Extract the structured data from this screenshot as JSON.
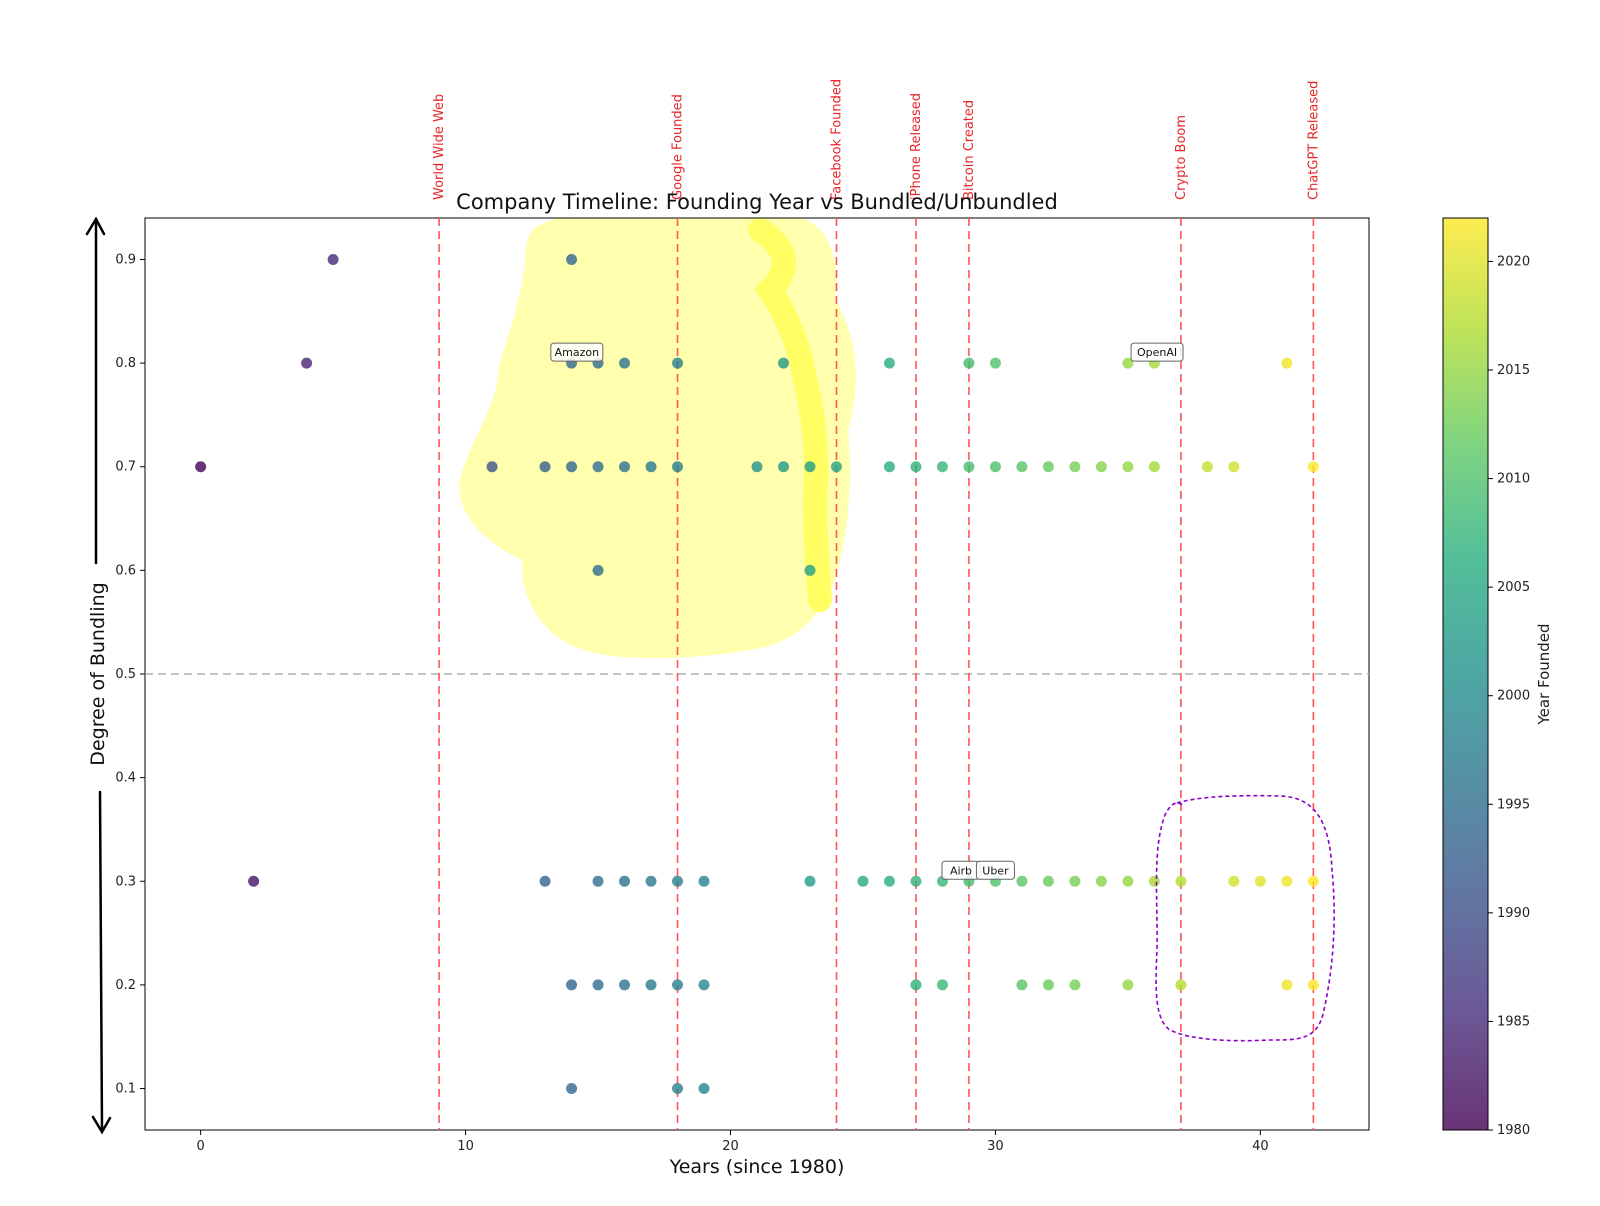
{
  "chart_data": {
    "type": "scatter",
    "title": "Company Timeline: Founding Year vs Bundled/Unbundled",
    "xlabel": "Years (since 1980)",
    "ylabel": "Degree of Bundling",
    "xlim": [
      -2.1,
      44.1
    ],
    "ylim": [
      0.06,
      0.94
    ],
    "xticks": [
      0,
      10,
      20,
      30,
      40
    ],
    "yticks": [
      0.1,
      0.2,
      0.3,
      0.4,
      0.5,
      0.6,
      0.7,
      0.8,
      0.9
    ],
    "threshold_y": 0.5,
    "colorbar": {
      "label": "Year Founded",
      "min": 1980,
      "max": 2022,
      "ticks": [
        1980,
        1985,
        1990,
        1995,
        2000,
        2005,
        2010,
        2015,
        2020
      ]
    },
    "events": [
      {
        "x": 9,
        "label": "World Wide Web"
      },
      {
        "x": 18,
        "label": "Google Founded"
      },
      {
        "x": 24,
        "label": "Facebook Founded"
      },
      {
        "x": 27,
        "label": "iPhone Released"
      },
      {
        "x": 29,
        "label": "Bitcoin Created"
      },
      {
        "x": 37,
        "label": "Crypto Boom"
      },
      {
        "x": 42,
        "label": "ChatGPT Released"
      }
    ],
    "annotations": [
      {
        "x": 14.2,
        "y": 0.8,
        "text": "Amazon"
      },
      {
        "x": 36.1,
        "y": 0.8,
        "text": "OpenAI"
      },
      {
        "x": 28.7,
        "y": 0.3,
        "text": "Airb"
      },
      {
        "x": 30.0,
        "y": 0.3,
        "text": "Uber"
      }
    ],
    "points": [
      {
        "x": 0,
        "y": 0.7
      },
      {
        "x": 2,
        "y": 0.3
      },
      {
        "x": 4,
        "y": 0.8
      },
      {
        "x": 5,
        "y": 0.9
      },
      {
        "x": 14,
        "y": 0.9
      },
      {
        "x": 14,
        "y": 0.8
      },
      {
        "x": 15,
        "y": 0.8
      },
      {
        "x": 16,
        "y": 0.8
      },
      {
        "x": 18,
        "y": 0.8
      },
      {
        "x": 22,
        "y": 0.8
      },
      {
        "x": 26,
        "y": 0.8
      },
      {
        "x": 29,
        "y": 0.8
      },
      {
        "x": 30,
        "y": 0.8
      },
      {
        "x": 35,
        "y": 0.8
      },
      {
        "x": 36,
        "y": 0.8
      },
      {
        "x": 41,
        "y": 0.8
      },
      {
        "x": 11,
        "y": 0.7
      },
      {
        "x": 13,
        "y": 0.7
      },
      {
        "x": 14,
        "y": 0.7
      },
      {
        "x": 15,
        "y": 0.7
      },
      {
        "x": 16,
        "y": 0.7
      },
      {
        "x": 17,
        "y": 0.7
      },
      {
        "x": 18,
        "y": 0.7
      },
      {
        "x": 21,
        "y": 0.7
      },
      {
        "x": 22,
        "y": 0.7
      },
      {
        "x": 23,
        "y": 0.7
      },
      {
        "x": 24,
        "y": 0.7
      },
      {
        "x": 26,
        "y": 0.7
      },
      {
        "x": 27,
        "y": 0.7
      },
      {
        "x": 28,
        "y": 0.7
      },
      {
        "x": 29,
        "y": 0.7
      },
      {
        "x": 30,
        "y": 0.7
      },
      {
        "x": 31,
        "y": 0.7
      },
      {
        "x": 32,
        "y": 0.7
      },
      {
        "x": 33,
        "y": 0.7
      },
      {
        "x": 34,
        "y": 0.7
      },
      {
        "x": 35,
        "y": 0.7
      },
      {
        "x": 36,
        "y": 0.7
      },
      {
        "x": 38,
        "y": 0.7
      },
      {
        "x": 39,
        "y": 0.7
      },
      {
        "x": 42,
        "y": 0.7
      },
      {
        "x": 15,
        "y": 0.6
      },
      {
        "x": 23,
        "y": 0.6
      },
      {
        "x": 13,
        "y": 0.3
      },
      {
        "x": 15,
        "y": 0.3
      },
      {
        "x": 16,
        "y": 0.3
      },
      {
        "x": 17,
        "y": 0.3
      },
      {
        "x": 18,
        "y": 0.3
      },
      {
        "x": 19,
        "y": 0.3
      },
      {
        "x": 23,
        "y": 0.3
      },
      {
        "x": 25,
        "y": 0.3
      },
      {
        "x": 26,
        "y": 0.3
      },
      {
        "x": 27,
        "y": 0.3
      },
      {
        "x": 28,
        "y": 0.3
      },
      {
        "x": 29,
        "y": 0.3
      },
      {
        "x": 30,
        "y": 0.3
      },
      {
        "x": 31,
        "y": 0.3
      },
      {
        "x": 32,
        "y": 0.3
      },
      {
        "x": 33,
        "y": 0.3
      },
      {
        "x": 34,
        "y": 0.3
      },
      {
        "x": 35,
        "y": 0.3
      },
      {
        "x": 36,
        "y": 0.3
      },
      {
        "x": 37,
        "y": 0.3
      },
      {
        "x": 39,
        "y": 0.3
      },
      {
        "x": 40,
        "y": 0.3
      },
      {
        "x": 41,
        "y": 0.3
      },
      {
        "x": 42,
        "y": 0.3
      },
      {
        "x": 14,
        "y": 0.2
      },
      {
        "x": 15,
        "y": 0.2
      },
      {
        "x": 16,
        "y": 0.2
      },
      {
        "x": 17,
        "y": 0.2
      },
      {
        "x": 18,
        "y": 0.2
      },
      {
        "x": 19,
        "y": 0.2
      },
      {
        "x": 27,
        "y": 0.2
      },
      {
        "x": 28,
        "y": 0.2
      },
      {
        "x": 31,
        "y": 0.2
      },
      {
        "x": 32,
        "y": 0.2
      },
      {
        "x": 33,
        "y": 0.2
      },
      {
        "x": 35,
        "y": 0.2
      },
      {
        "x": 37,
        "y": 0.2
      },
      {
        "x": 41,
        "y": 0.2
      },
      {
        "x": 42,
        "y": 0.2
      },
      {
        "x": 14,
        "y": 0.1
      },
      {
        "x": 18,
        "y": 0.1
      },
      {
        "x": 19,
        "y": 0.1
      }
    ]
  },
  "colors": {
    "event_line": "#ff5555",
    "event_label": "#e8262a",
    "threshold": "#b0b0b0",
    "highlight": "#ffff80",
    "circle_annotation": "#8a00c8"
  }
}
